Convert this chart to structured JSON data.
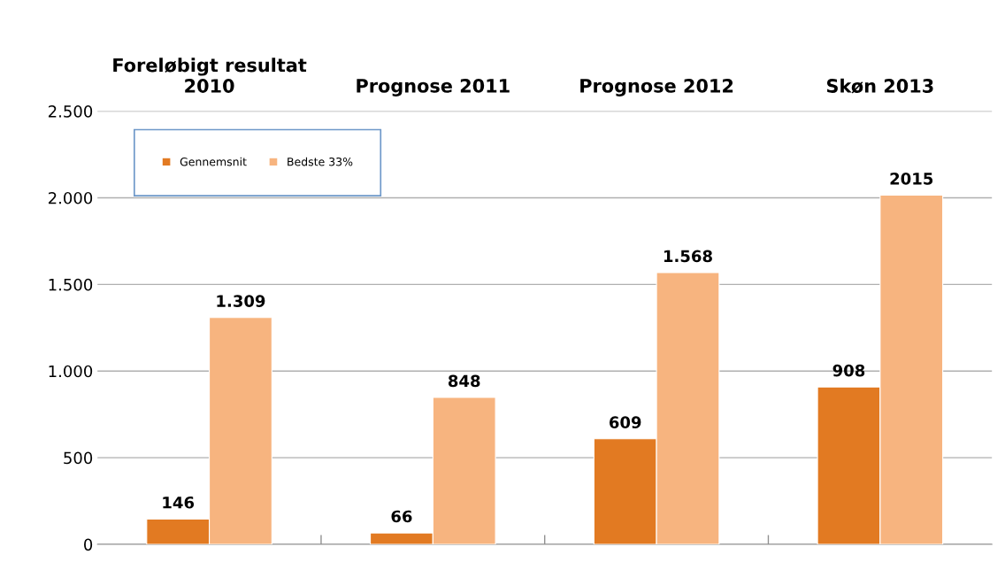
{
  "chart_data": {
    "type": "bar",
    "categories": [
      "Foreløbigt resultat\n2010",
      "Prognose 2011",
      "Prognose 2012",
      "Skøn 2013"
    ],
    "series": [
      {
        "name": "Gennemsnit",
        "color": "#e27a22",
        "values": [
          146,
          66,
          609,
          908
        ],
        "value_labels": [
          "146",
          "66",
          "609",
          "908"
        ]
      },
      {
        "name": "Bedste 33%",
        "color": "#f7b47f",
        "values": [
          1309,
          848,
          1568,
          2015
        ],
        "value_labels": [
          "1.309",
          "848",
          "1.568",
          "2015"
        ]
      }
    ],
    "ylim": [
      0,
      2500
    ],
    "yticks": [
      0,
      500,
      {
        "value": 1000,
        "label": "1.000"
      },
      {
        "value": 1500,
        "label": "1.500"
      },
      {
        "value": 2000,
        "label": "2.000"
      },
      {
        "value": 2500,
        "label": "2.500"
      }
    ],
    "grid": "y",
    "legend": "top left"
  }
}
